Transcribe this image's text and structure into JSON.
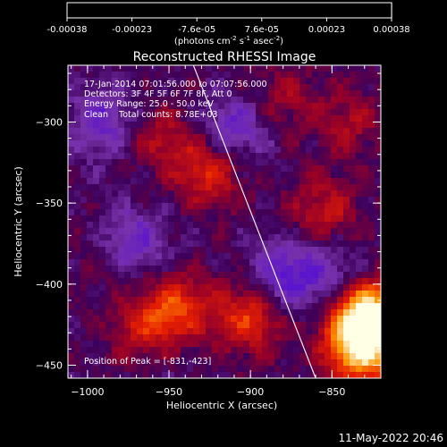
{
  "chart_data": {
    "type": "heatmap",
    "title": "Reconstructed RHESSI Image",
    "xlabel": "Heliocentric X (arcsec)",
    "ylabel": "Heliocentric Y (arcsec)",
    "xlim": [
      -1012,
      -820
    ],
    "ylim": [
      -458,
      -265
    ],
    "x_ticks": [
      -1000,
      -950,
      -900,
      -850
    ],
    "x_tick_labels": [
      "−1000",
      "−950",
      "−900",
      "−850"
    ],
    "y_ticks": [
      -300,
      -350,
      -400,
      -450
    ],
    "y_tick_labels": [
      "−300",
      "−350",
      "−400",
      "−450"
    ],
    "colorbar": {
      "range": [
        -0.00038,
        0.00038
      ],
      "tick_labels": [
        "-0.00038",
        "-0.00023",
        "-7.6e-05",
        "7.6e-05",
        "0.00023",
        "0.00038"
      ],
      "unit_label": {
        "pre": "(photons cm",
        "sup1": "-2",
        "mid": " s",
        "sup2": "-1",
        "post": " asec",
        "sup3": "-2",
        "end": ")"
      }
    },
    "annotations": {
      "line1": "17-Jan-2014 07:01:56.000 to 07:07:56.000",
      "line2": "Detectors: 3F 4F 5F 6F 7F 8F, Att 0",
      "line3": "Energy Range: 25.0 - 50.0 keV",
      "line4": "Clean    Total counts: 8.78E+03",
      "peak": "Position of Peak = [-831,-423]"
    },
    "peak_position": [
      -831,
      -423
    ],
    "limb": {
      "x": [
        -935,
        -860
      ],
      "y": [
        -265,
        -458
      ]
    },
    "sources": [
      {
        "x": -828,
        "y": -420,
        "value": 0.00038
      },
      {
        "x": -832,
        "y": -440,
        "value": 0.0003
      },
      {
        "x": -900,
        "y": -420,
        "value": 0.00018
      },
      {
        "x": -925,
        "y": -330,
        "value": 0.00016
      },
      {
        "x": -945,
        "y": -415,
        "value": 0.00017
      },
      {
        "x": -965,
        "y": -430,
        "value": 0.00015
      },
      {
        "x": -855,
        "y": -355,
        "value": 0.00012
      },
      {
        "x": -955,
        "y": -310,
        "value": 0.0001
      },
      {
        "x": -985,
        "y": -380,
        "value": 9e-05
      },
      {
        "x": -880,
        "y": -285,
        "value": 8e-05
      },
      {
        "x": -840,
        "y": -300,
        "value": 9e-05
      },
      {
        "x": -975,
        "y": -375,
        "value": -0.00018
      },
      {
        "x": -880,
        "y": -395,
        "value": -0.00016
      },
      {
        "x": -990,
        "y": -300,
        "value": -0.00013
      },
      {
        "x": -910,
        "y": -305,
        "value": -0.00014
      },
      {
        "x": -850,
        "y": -395,
        "value": -0.0001
      },
      {
        "x": -960,
        "y": -440,
        "value": -6e-05
      }
    ]
  },
  "footer": {
    "timestamp": "11-May-2022 20:46"
  },
  "colors": {
    "background": "#000000",
    "text": "#ffffff",
    "limb": "#ffffff"
  }
}
